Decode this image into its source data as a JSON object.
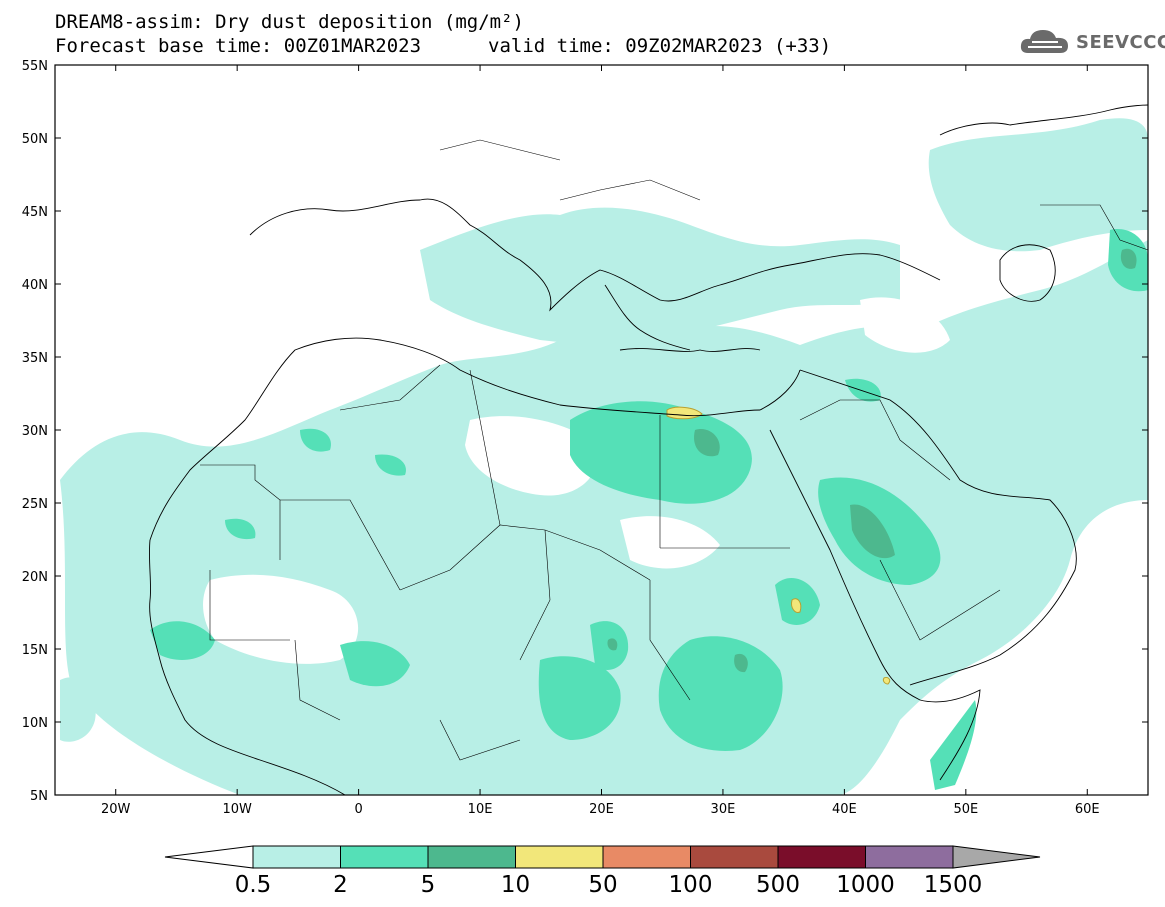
{
  "header": {
    "title_line1": "DREAM8-assim: Dry dust deposition (mg/m²)",
    "title_line2_left": "Forecast base time: 00Z01MAR2023",
    "title_line2_right": "valid time: 09Z02MAR2023 (+33)",
    "logo_text": "SEEVCCC",
    "logo_icon": "cloud-icon"
  },
  "map": {
    "lat_labels": [
      "55N",
      "50N",
      "45N",
      "40N",
      "35N",
      "30N",
      "25N",
      "20N",
      "15N",
      "10N",
      "5N"
    ],
    "lon_labels": [
      "20W",
      "10W",
      "0",
      "10E",
      "20E",
      "30E",
      "40E",
      "50E",
      "60E"
    ],
    "lon_range": [
      -25,
      65
    ],
    "lat_range": [
      5,
      55
    ]
  },
  "colorbar": {
    "levels": [
      "0.5",
      "2",
      "5",
      "10",
      "50",
      "100",
      "500",
      "1000",
      "1500"
    ],
    "colors": [
      "#b8efe6",
      "#55e0b7",
      "#4db88e",
      "#f2e77a",
      "#e88a65",
      "#a94a3e",
      "#7a0d2a",
      "#8e6d9e",
      "#a8a8a8"
    ]
  }
}
